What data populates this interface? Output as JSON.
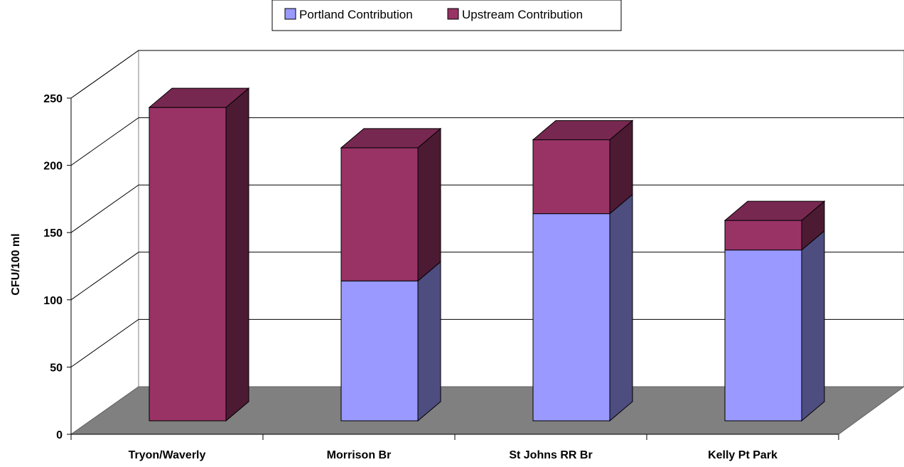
{
  "chart_data": {
    "type": "bar",
    "stacked": true,
    "three_d": true,
    "categories": [
      "Tryon/Waverly",
      "Morrison Br",
      "St Johns RR Br",
      "Kelly Pt Park"
    ],
    "series": [
      {
        "name": "Portland Contribution",
        "values": [
          0,
          104,
          154,
          127
        ],
        "color": "#9999ff"
      },
      {
        "name": "Upstream Contribution",
        "values": [
          233,
          99,
          55,
          22
        ],
        "color": "#993366"
      }
    ],
    "ylabel": "CFU/100 ml",
    "ylim": [
      0,
      250
    ],
    "yticks": [
      0,
      50,
      100,
      150,
      200,
      250
    ],
    "grid": true,
    "legend_position": "top-center",
    "floor_color": "#808080",
    "wall_color": "#ffffff"
  }
}
